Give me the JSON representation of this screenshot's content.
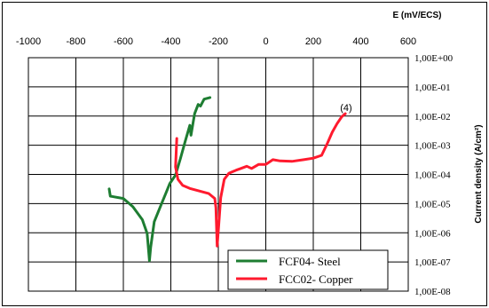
{
  "chart_data": {
    "type": "line",
    "xlabel": "E (mV/ECS)",
    "ylabel": "Current density (A/cm²)",
    "xlim": [
      -1000,
      600
    ],
    "ylim_log10": [
      -8,
      0
    ],
    "y_scale": "log",
    "x_axis_position": "top",
    "y_axis_position": "right",
    "grid": true,
    "legend_placement": "bottom-right",
    "x_ticks": [
      "-1000",
      "-800",
      "-600",
      "-400",
      "-200",
      "0",
      "200",
      "400",
      "600"
    ],
    "y_ticks": [
      "1,00E+00",
      "1,00E-01",
      "1,00E-02",
      "1,00E-03",
      "1,00E-04",
      "1,00E-05",
      "1,00E-06",
      "1,00E-07",
      "1,00E-08"
    ],
    "annotation": "(4)",
    "series": [
      {
        "name": "FCF04- Steel",
        "color": "#1e7d32",
        "points": [
          [
            -660,
            3.2e-05
          ],
          [
            -655,
            1.8e-05
          ],
          [
            -600,
            1.5e-05
          ],
          [
            -560,
            7.8e-06
          ],
          [
            -520,
            2.8e-06
          ],
          [
            -500,
            9.5e-07
          ],
          [
            -490,
            1.1e-07
          ],
          [
            -485,
            3.2e-07
          ],
          [
            -470,
            2.4e-06
          ],
          [
            -440,
            9.5e-06
          ],
          [
            -420,
            2.4e-05
          ],
          [
            -405,
            4.8e-05
          ],
          [
            -380,
            9.5e-05
          ],
          [
            -360,
            0.00034
          ],
          [
            -340,
            0.0013
          ],
          [
            -320,
            0.0048
          ],
          [
            -315,
            0.0022
          ],
          [
            -305,
            0.0068
          ],
          [
            -300,
            0.012
          ],
          [
            -285,
            0.025
          ],
          [
            -275,
            0.022
          ],
          [
            -260,
            0.038
          ],
          [
            -235,
            0.043
          ]
        ]
      },
      {
        "name": "FCC02- Copper",
        "color": "#ff1a2e",
        "points": [
          [
            -375,
            0.0017
          ],
          [
            -380,
            0.00018
          ],
          [
            -370,
            6.8e-05
          ],
          [
            -350,
            4.2e-05
          ],
          [
            -320,
            3.3e-05
          ],
          [
            -280,
            2.7e-05
          ],
          [
            -240,
            2.2e-05
          ],
          [
            -215,
            1.5e-05
          ],
          [
            -210,
            7.2e-06
          ],
          [
            -205,
            3.5e-07
          ],
          [
            -198,
            1.9e-06
          ],
          [
            -190,
            1.6e-05
          ],
          [
            -175,
            6.8e-05
          ],
          [
            -155,
            0.00011
          ],
          [
            -125,
            0.00014
          ],
          [
            -105,
            0.00016
          ],
          [
            -80,
            0.00019
          ],
          [
            -60,
            0.00016
          ],
          [
            -30,
            0.00022
          ],
          [
            0,
            0.00022
          ],
          [
            30,
            0.00032
          ],
          [
            60,
            0.00029
          ],
          [
            110,
            0.00028
          ],
          [
            160,
            0.00032
          ],
          [
            200,
            0.00036
          ],
          [
            235,
            0.00045
          ],
          [
            260,
            0.0012
          ],
          [
            280,
            0.0028
          ],
          [
            300,
            0.0055
          ],
          [
            320,
            0.0095
          ],
          [
            335,
            0.012
          ]
        ]
      }
    ]
  }
}
